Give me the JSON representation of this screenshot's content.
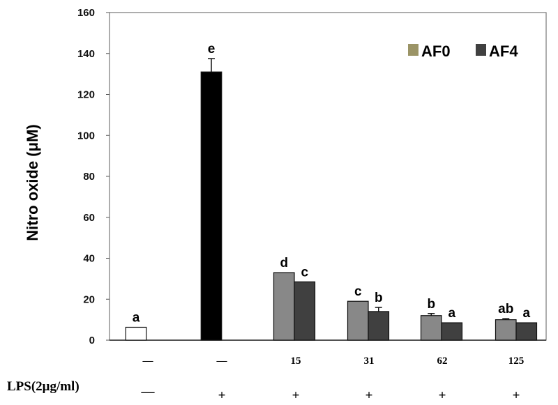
{
  "chart_data": {
    "type": "bar",
    "title": "",
    "ylabel": "Nitro oxide (μM)",
    "xlabel": "",
    "ylim": [
      0,
      160
    ],
    "yticks": [
      "0",
      "20",
      "40",
      "60",
      "80",
      "100",
      "120",
      "140",
      "160"
    ],
    "grid": false,
    "legend": {
      "placement": "top-right",
      "entries": [
        {
          "name": "AF0",
          "color": "#9b9466"
        },
        {
          "name": "AF4",
          "color": "#404040"
        }
      ]
    },
    "bars": [
      {
        "group": 0,
        "series": "control",
        "value": 6.3,
        "error": 0,
        "letter": "a",
        "color": "#ffffff"
      },
      {
        "group": 1,
        "series": "LPS",
        "value": 131,
        "error": 6.5,
        "letter": "e",
        "color": "#000000"
      },
      {
        "group": 2,
        "series": "AF0",
        "value": 33,
        "error": 0,
        "letter": "d",
        "color": "#888888"
      },
      {
        "group": 2,
        "series": "AF4",
        "value": 28.5,
        "error": 0,
        "letter": "c",
        "color": "#404040"
      },
      {
        "group": 3,
        "series": "AF0",
        "value": 19,
        "error": 0,
        "letter": "c",
        "color": "#888888"
      },
      {
        "group": 3,
        "series": "AF4",
        "value": 14,
        "error": 2,
        "letter": "b",
        "color": "#404040"
      },
      {
        "group": 4,
        "series": "AF0",
        "value": 12,
        "error": 1,
        "letter": "b",
        "color": "#888888"
      },
      {
        "group": 4,
        "series": "AF4",
        "value": 8.5,
        "error": 0,
        "letter": "a",
        "color": "#404040"
      },
      {
        "group": 5,
        "series": "AF0",
        "value": 10,
        "error": 0.5,
        "letter": "ab",
        "color": "#888888"
      },
      {
        "group": 5,
        "series": "AF4",
        "value": 8.5,
        "error": 0,
        "letter": "a",
        "color": "#404040"
      }
    ],
    "concentration_row": [
      "—",
      "—",
      "15",
      "31",
      "62",
      "125"
    ],
    "lps_row": {
      "label": "LPS(2μg/ml)",
      "values": [
        "—",
        "+",
        "+",
        "+",
        "+",
        "+"
      ]
    }
  }
}
